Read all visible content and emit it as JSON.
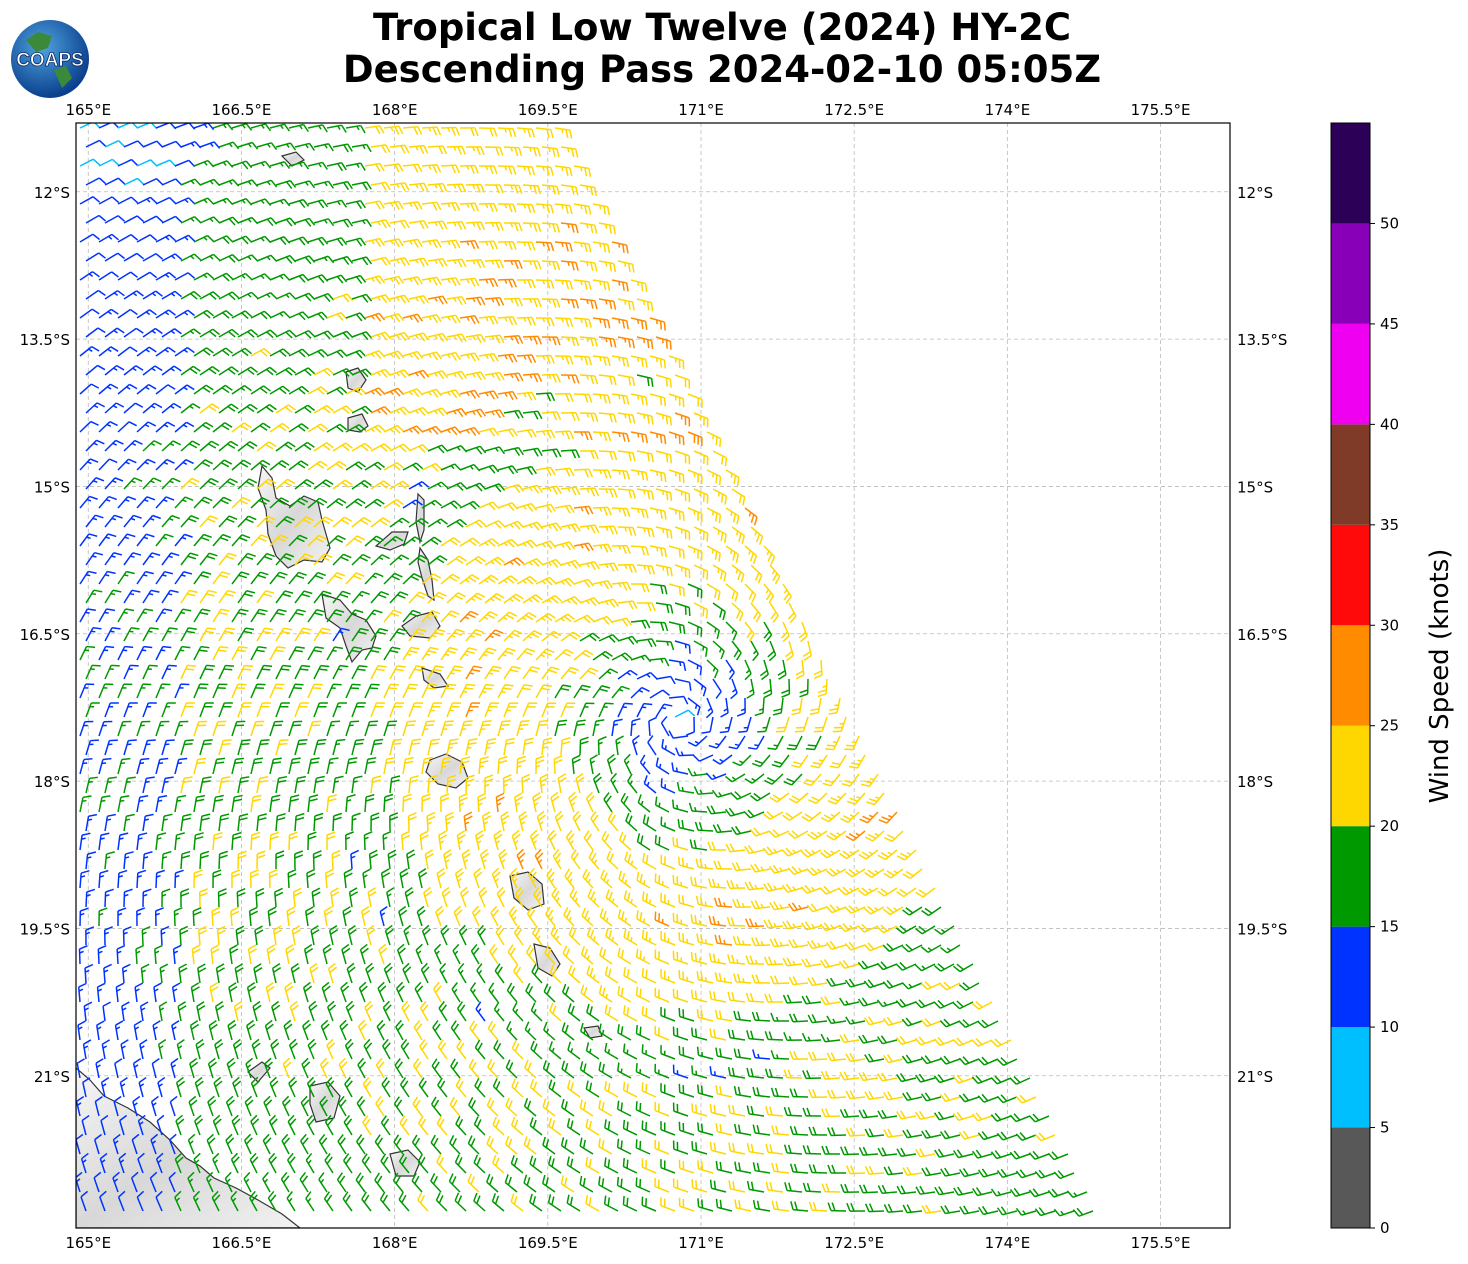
{
  "title": {
    "line1": "Tropical Low Twelve (2024) HY-2C",
    "line2": "Descending Pass 2024-02-10 05:05Z"
  },
  "logo": {
    "text": "COAPS",
    "icon": "globe-logo-icon"
  },
  "map": {
    "lon_range": [
      164.88,
      176.18
    ],
    "lat_range": [
      -22.55,
      -11.3
    ],
    "lon_ticks": [
      "165°E",
      "166.5°E",
      "168°E",
      "169.5°E",
      "171°E",
      "172.5°E",
      "174°E",
      "175.5°E"
    ],
    "lat_ticks": [
      "12°S",
      "13.5°S",
      "15°S",
      "16.5°S",
      "18°S",
      "19.5°S",
      "21°S"
    ],
    "lon_values": [
      165,
      166.5,
      168,
      169.5,
      171,
      172.5,
      174,
      175.5
    ],
    "lat_values": [
      -12,
      -13.5,
      -15,
      -16.5,
      -18,
      -19.5,
      -21
    ],
    "circulation_center": {
      "lon": 170.8,
      "lat": -17.4
    },
    "grid": "dashed"
  },
  "colorbar": {
    "title": "Wind Speed (knots)",
    "ticks": [
      "0",
      "5",
      "10",
      "15",
      "20",
      "25",
      "30",
      "35",
      "40",
      "45",
      "50"
    ],
    "colors": [
      "#585858",
      "#00bfff",
      "#0033ff",
      "#009900",
      "#ffd700",
      "#ff8c00",
      "#ff0a0a",
      "#7f3a28",
      "#f000f0",
      "#8800b8",
      "#2d0058"
    ]
  }
}
